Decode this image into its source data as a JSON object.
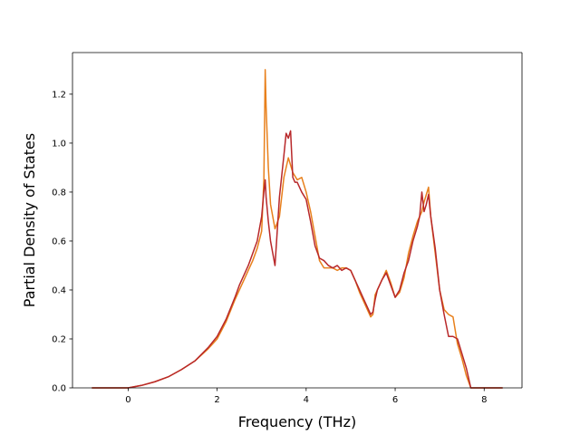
{
  "chart_data": {
    "type": "line",
    "title": "",
    "xlabel": "Frequency (THz)",
    "ylabel": "Partial Density of States",
    "xlim": [
      -1.25,
      8.85
    ],
    "ylim": [
      0.0,
      1.37
    ],
    "xticks": [
      0,
      2,
      4,
      6,
      8
    ],
    "yticks": [
      0.0,
      0.2,
      0.4,
      0.6,
      0.8,
      1.0,
      1.2
    ],
    "xtick_labels": [
      "0",
      "2",
      "4",
      "6",
      "8"
    ],
    "ytick_labels": [
      "0.0",
      "0.2",
      "0.4",
      "0.6",
      "0.8",
      "1.0",
      "1.2"
    ],
    "grid": false,
    "legend": "none",
    "series": [
      {
        "color": "#e8801c",
        "x": [
          -0.8,
          0.0,
          0.3,
          0.6,
          0.9,
          1.2,
          1.5,
          1.8,
          2.0,
          2.2,
          2.4,
          2.5,
          2.6,
          2.7,
          2.8,
          2.9,
          3.0,
          3.05,
          3.08,
          3.1,
          3.15,
          3.2,
          3.3,
          3.4,
          3.5,
          3.6,
          3.7,
          3.8,
          3.9,
          4.0,
          4.1,
          4.2,
          4.3,
          4.4,
          4.5,
          4.6,
          4.7,
          4.8,
          4.9,
          5.0,
          5.1,
          5.2,
          5.3,
          5.4,
          5.45,
          5.5,
          5.55,
          5.6,
          5.7,
          5.8,
          5.9,
          6.0,
          6.1,
          6.2,
          6.3,
          6.4,
          6.5,
          6.6,
          6.65,
          6.7,
          6.75,
          6.8,
          6.9,
          7.0,
          7.1,
          7.2,
          7.3,
          7.4,
          7.5,
          7.6,
          7.7,
          7.8,
          8.4
        ],
        "y": [
          0.0,
          0.0,
          0.01,
          0.025,
          0.045,
          0.075,
          0.11,
          0.16,
          0.2,
          0.27,
          0.36,
          0.4,
          0.44,
          0.48,
          0.52,
          0.57,
          0.64,
          0.85,
          1.3,
          1.15,
          0.9,
          0.75,
          0.65,
          0.7,
          0.86,
          0.94,
          0.88,
          0.85,
          0.86,
          0.8,
          0.72,
          0.62,
          0.52,
          0.49,
          0.49,
          0.49,
          0.48,
          0.49,
          0.49,
          0.48,
          0.44,
          0.39,
          0.35,
          0.31,
          0.29,
          0.3,
          0.38,
          0.4,
          0.44,
          0.48,
          0.43,
          0.37,
          0.39,
          0.45,
          0.55,
          0.62,
          0.68,
          0.72,
          0.76,
          0.79,
          0.82,
          0.7,
          0.55,
          0.4,
          0.32,
          0.3,
          0.29,
          0.18,
          0.12,
          0.05,
          0.0,
          0.0,
          0.0
        ]
      },
      {
        "color": "#b8282a",
        "x": [
          -0.8,
          0.0,
          0.3,
          0.6,
          0.9,
          1.2,
          1.5,
          1.8,
          2.0,
          2.2,
          2.4,
          2.5,
          2.6,
          2.7,
          2.8,
          2.9,
          3.0,
          3.05,
          3.08,
          3.1,
          3.15,
          3.2,
          3.3,
          3.4,
          3.5,
          3.55,
          3.6,
          3.65,
          3.7,
          3.75,
          3.8,
          3.9,
          4.0,
          4.1,
          4.2,
          4.3,
          4.4,
          4.5,
          4.6,
          4.7,
          4.8,
          4.9,
          5.0,
          5.1,
          5.2,
          5.3,
          5.4,
          5.45,
          5.5,
          5.55,
          5.6,
          5.7,
          5.8,
          5.9,
          6.0,
          6.1,
          6.2,
          6.3,
          6.4,
          6.5,
          6.55,
          6.6,
          6.65,
          6.7,
          6.75,
          6.8,
          6.9,
          7.0,
          7.1,
          7.2,
          7.3,
          7.4,
          7.5,
          7.6,
          7.65,
          7.7,
          7.8,
          8.4
        ],
        "y": [
          0.0,
          0.0,
          0.01,
          0.025,
          0.045,
          0.075,
          0.11,
          0.165,
          0.21,
          0.28,
          0.37,
          0.42,
          0.46,
          0.5,
          0.55,
          0.6,
          0.7,
          0.8,
          0.85,
          0.78,
          0.68,
          0.6,
          0.5,
          0.78,
          0.95,
          1.04,
          1.02,
          1.05,
          0.86,
          0.84,
          0.84,
          0.8,
          0.77,
          0.68,
          0.58,
          0.53,
          0.52,
          0.5,
          0.49,
          0.5,
          0.48,
          0.49,
          0.48,
          0.44,
          0.4,
          0.36,
          0.32,
          0.3,
          0.31,
          0.36,
          0.4,
          0.44,
          0.47,
          0.42,
          0.37,
          0.4,
          0.47,
          0.52,
          0.6,
          0.66,
          0.7,
          0.8,
          0.72,
          0.75,
          0.79,
          0.7,
          0.57,
          0.4,
          0.3,
          0.21,
          0.21,
          0.2,
          0.14,
          0.08,
          0.04,
          0.0,
          0.0,
          0.0
        ]
      }
    ]
  }
}
